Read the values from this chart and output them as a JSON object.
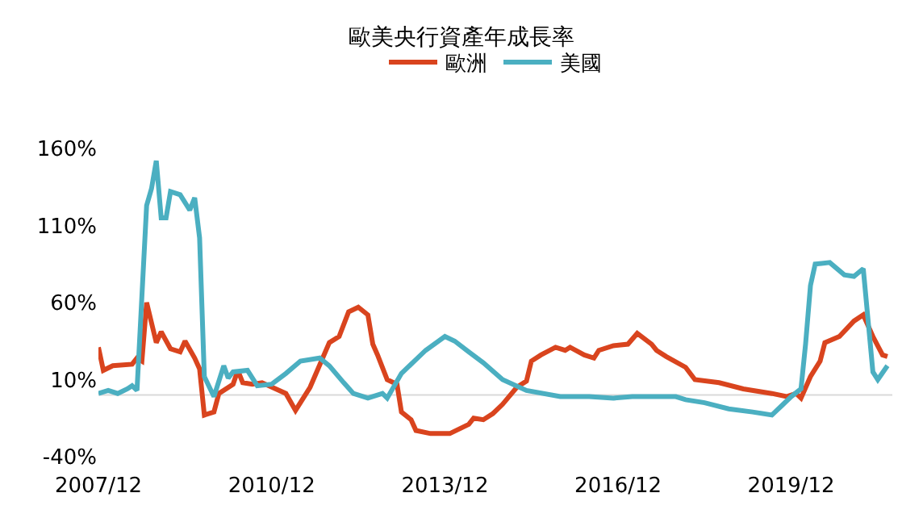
{
  "chart_data": {
    "type": "line",
    "title": "歐美央行資產年成長率",
    "legend": "top",
    "grid": false,
    "marker": "none",
    "line_style": "solid",
    "xlim": [
      "2007-12",
      "2021-09"
    ],
    "xticks": [
      {
        "value": "2007-12",
        "label": "2007/12"
      },
      {
        "value": "2010-12",
        "label": "2010/12"
      },
      {
        "value": "2013-12",
        "label": "2013/12"
      },
      {
        "value": "2016-12",
        "label": "2016/12"
      },
      {
        "value": "2019-12",
        "label": "2019/12"
      }
    ],
    "ylim": [
      -40,
      160
    ],
    "yticks": [
      {
        "value": -40,
        "label": "-40%"
      },
      {
        "value": 10,
        "label": "10%"
      },
      {
        "value": 60,
        "label": "60%"
      },
      {
        "value": 110,
        "label": "110%"
      },
      {
        "value": 160,
        "label": "160%"
      }
    ],
    "ref_lines": [
      {
        "axis": "y",
        "value": 0,
        "color": "#d9d9d9"
      }
    ],
    "series": [
      {
        "name": "歐洲",
        "color": "#d9441e",
        "x": [
          "2007-12",
          "2008-01",
          "2008-03",
          "2008-07",
          "2008-08",
          "2008-09",
          "2008-10",
          "2008-12",
          "2009-01",
          "2009-03",
          "2009-05",
          "2009-06",
          "2009-08",
          "2009-09",
          "2009-10",
          "2009-12",
          "2010-01",
          "2010-04",
          "2010-05",
          "2010-06",
          "2010-08",
          "2010-10",
          "2011-03",
          "2011-05",
          "2011-08",
          "2011-12",
          "2012-02",
          "2012-04",
          "2012-06",
          "2012-08",
          "2012-09",
          "2012-10",
          "2012-12",
          "2013-02",
          "2013-03",
          "2013-05",
          "2013-06",
          "2013-09",
          "2014-01",
          "2014-05",
          "2014-06",
          "2014-08",
          "2014-10",
          "2014-12",
          "2015-03",
          "2015-05",
          "2015-06",
          "2015-08",
          "2015-11",
          "2016-01",
          "2016-02",
          "2016-05",
          "2016-07",
          "2016-08",
          "2016-11",
          "2017-02",
          "2017-04",
          "2017-07",
          "2017-08",
          "2017-10",
          "2018-02",
          "2018-04",
          "2018-09",
          "2019-02",
          "2019-08",
          "2019-11",
          "2020-01",
          "2020-02",
          "2020-04",
          "2020-06",
          "2020-07",
          "2020-10",
          "2021-01",
          "2021-03",
          "2021-05",
          "2021-07",
          "2021-08"
        ],
        "values": [
          31,
          16,
          19,
          20,
          24,
          22,
          60,
          34,
          41,
          30,
          28,
          35,
          24,
          17,
          -13,
          -11,
          1,
          7,
          16,
          8,
          7,
          8,
          1,
          -10,
          5,
          34,
          38,
          54,
          57,
          52,
          33,
          26,
          10,
          7,
          -11,
          -16,
          -23,
          -25,
          -25,
          -19,
          -15,
          -16,
          -12,
          -6,
          5,
          9,
          22,
          26,
          31,
          29,
          31,
          26,
          24,
          29,
          32,
          33,
          40,
          33,
          29,
          25,
          18,
          10,
          8,
          4,
          1,
          -1,
          1,
          -2,
          12,
          22,
          34,
          38,
          48,
          52,
          38,
          26,
          25
        ]
      },
      {
        "name": "美國",
        "color": "#4bafc1",
        "x": [
          "2007-12",
          "2008-02",
          "2008-04",
          "2008-06",
          "2008-07",
          "2008-08",
          "2008-10",
          "2008-11",
          "2008-12",
          "2009-01",
          "2009-02",
          "2009-03",
          "2009-05",
          "2009-07",
          "2009-08",
          "2009-09",
          "2009-10",
          "2009-12",
          "2010-02",
          "2010-03",
          "2010-04",
          "2010-07",
          "2010-09",
          "2010-12",
          "2011-03",
          "2011-06",
          "2011-10",
          "2011-12",
          "2012-03",
          "2012-05",
          "2012-08",
          "2012-11",
          "2012-12",
          "2013-03",
          "2013-08",
          "2013-12",
          "2014-02",
          "2014-05",
          "2014-08",
          "2014-12",
          "2015-05",
          "2015-12",
          "2016-06",
          "2016-11",
          "2017-03",
          "2017-12",
          "2018-02",
          "2018-06",
          "2018-11",
          "2019-04",
          "2019-08",
          "2019-10",
          "2019-12",
          "2020-02",
          "2020-03",
          "2020-04",
          "2020-05",
          "2020-08",
          "2020-11",
          "2021-01",
          "2021-03",
          "2021-05",
          "2021-06",
          "2021-08"
        ],
        "values": [
          1,
          3,
          1,
          4,
          6,
          3,
          123,
          134,
          152,
          115,
          115,
          132,
          130,
          120,
          128,
          102,
          12,
          -1,
          19,
          11,
          15,
          16,
          6,
          7,
          14,
          22,
          24,
          19,
          8,
          1,
          -2,
          1,
          -2,
          14,
          29,
          38,
          35,
          28,
          21,
          10,
          3,
          -1,
          -1,
          -2,
          -1,
          -1,
          -3,
          -5,
          -9,
          -11,
          -13,
          -7,
          -1,
          4,
          33,
          71,
          85,
          86,
          78,
          77,
          82,
          15,
          10,
          19
        ]
      }
    ]
  }
}
